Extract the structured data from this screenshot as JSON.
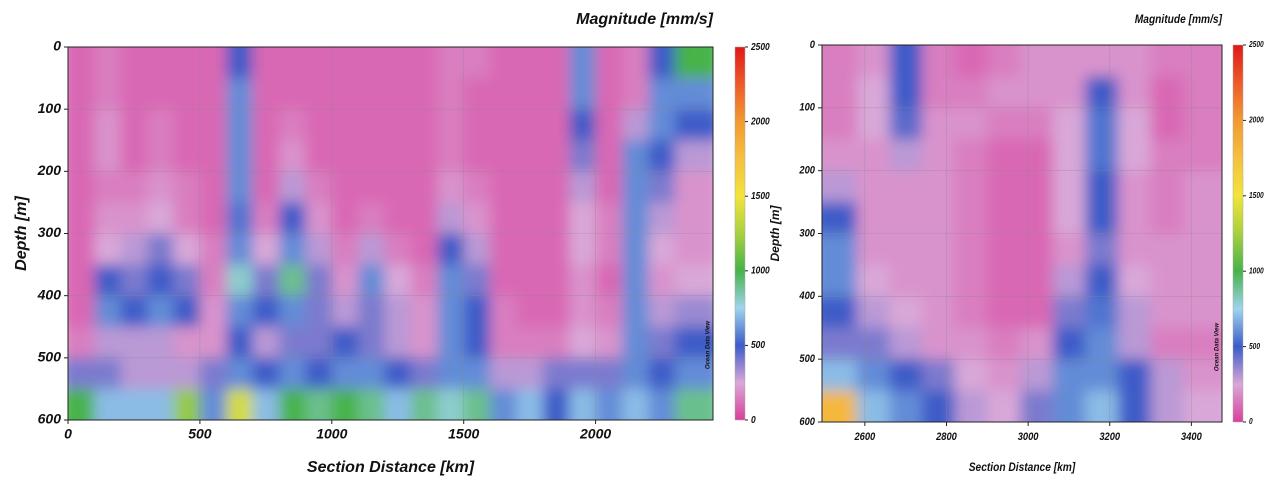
{
  "chart_data": [
    {
      "type": "heatmap",
      "title": "Magnitude [mm/s]",
      "x_label": "Section Distance [km]",
      "y_label": "Depth [m]",
      "watermark": "Ocean Data View",
      "xlim": [
        0,
        2445
      ],
      "xticks": [
        0,
        500,
        1000,
        1500,
        2000
      ],
      "ylim": [
        0,
        600
      ],
      "yticks": [
        0,
        100,
        200,
        300,
        400,
        500,
        600
      ],
      "y_inverted": true,
      "grid": true,
      "clim": [
        0,
        2500
      ],
      "cticks": [
        0,
        500,
        1000,
        1500,
        2000,
        2500
      ],
      "colors": [
        "#d93e9c",
        "#d9a8d8",
        "#3c5cc8",
        "#9fd4ee",
        "#46b34a",
        "#a8d040",
        "#f2e43a",
        "#f5c040",
        "#f29a30",
        "#ee5a2a",
        "#e01818"
      ],
      "x": [
        50,
        150,
        250,
        350,
        450,
        550,
        650,
        750,
        850,
        950,
        1050,
        1150,
        1250,
        1350,
        1450,
        1550,
        1650,
        1750,
        1850,
        1950,
        2050,
        2150,
        2250,
        2350
      ],
      "y": [
        25,
        75,
        125,
        175,
        225,
        275,
        325,
        375,
        425,
        475,
        525,
        575
      ],
      "z": [
        [
          100,
          150,
          100,
          100,
          100,
          100,
          500,
          100,
          100,
          100,
          100,
          100,
          100,
          100,
          150,
          150,
          100,
          100,
          100,
          600,
          100,
          150,
          500,
          1000
        ],
        [
          100,
          150,
          100,
          100,
          100,
          100,
          600,
          100,
          100,
          100,
          100,
          100,
          100,
          100,
          150,
          100,
          100,
          100,
          100,
          600,
          100,
          150,
          600,
          600
        ],
        [
          100,
          200,
          100,
          150,
          100,
          100,
          600,
          100,
          150,
          100,
          100,
          100,
          100,
          100,
          150,
          100,
          100,
          100,
          100,
          500,
          100,
          300,
          600,
          500
        ],
        [
          100,
          200,
          100,
          150,
          100,
          100,
          600,
          100,
          200,
          100,
          100,
          100,
          100,
          100,
          150,
          100,
          100,
          100,
          100,
          400,
          100,
          600,
          500,
          300
        ],
        [
          100,
          150,
          150,
          200,
          150,
          100,
          600,
          100,
          300,
          150,
          100,
          100,
          100,
          100,
          200,
          150,
          100,
          100,
          100,
          300,
          100,
          600,
          400,
          200
        ],
        [
          100,
          200,
          200,
          250,
          150,
          100,
          550,
          150,
          500,
          200,
          100,
          150,
          100,
          100,
          300,
          200,
          100,
          100,
          100,
          250,
          150,
          600,
          300,
          200
        ],
        [
          100,
          250,
          300,
          400,
          250,
          150,
          600,
          250,
          600,
          300,
          150,
          300,
          150,
          100,
          500,
          300,
          100,
          100,
          100,
          250,
          150,
          600,
          250,
          200
        ],
        [
          100,
          500,
          400,
          500,
          400,
          150,
          800,
          400,
          900,
          400,
          200,
          600,
          250,
          150,
          600,
          400,
          100,
          100,
          100,
          200,
          100,
          600,
          200,
          250
        ],
        [
          100,
          600,
          500,
          600,
          500,
          200,
          600,
          500,
          600,
          400,
          300,
          400,
          300,
          200,
          600,
          500,
          150,
          100,
          100,
          200,
          150,
          600,
          300,
          350
        ],
        [
          150,
          300,
          300,
          300,
          200,
          200,
          500,
          300,
          400,
          400,
          500,
          400,
          300,
          200,
          600,
          500,
          150,
          150,
          150,
          250,
          200,
          600,
          400,
          500
        ],
        [
          400,
          400,
          300,
          300,
          300,
          400,
          600,
          500,
          600,
          500,
          600,
          600,
          500,
          400,
          600,
          600,
          300,
          300,
          400,
          400,
          400,
          600,
          500,
          600
        ],
        [
          1000,
          700,
          700,
          700,
          1200,
          600,
          1400,
          700,
          1000,
          900,
          1000,
          900,
          700,
          900,
          800,
          900,
          600,
          700,
          500,
          700,
          600,
          700,
          600,
          900
        ]
      ]
    },
    {
      "type": "heatmap",
      "title": "Magnitude [mm/s]",
      "x_label": "Section Distance [km]",
      "y_label": "Depth [m]",
      "watermark": "Ocean Data View",
      "xlim": [
        2495,
        3475
      ],
      "xticks": [
        2600,
        2800,
        3000,
        3200,
        3400
      ],
      "ylim": [
        0,
        600
      ],
      "yticks": [
        0,
        100,
        200,
        300,
        400,
        500,
        600
      ],
      "y_inverted": true,
      "grid": true,
      "clim": [
        0,
        2500
      ],
      "cticks": [
        0,
        500,
        1000,
        1500,
        2000,
        2500
      ],
      "colors": [
        "#d93e9c",
        "#d9a8d8",
        "#3c5cc8",
        "#9fd4ee",
        "#46b34a",
        "#a8d040",
        "#f2e43a",
        "#f5c040",
        "#f29a30",
        "#ee5a2a",
        "#e01818"
      ],
      "x": [
        2540,
        2620,
        2700,
        2780,
        2860,
        2940,
        3020,
        3100,
        3180,
        3260,
        3340,
        3420
      ],
      "y": [
        25,
        75,
        125,
        175,
        225,
        275,
        325,
        375,
        425,
        475,
        525,
        575
      ],
      "z": [
        [
          150,
          200,
          500,
          150,
          100,
          150,
          200,
          200,
          200,
          200,
          150,
          150
        ],
        [
          150,
          250,
          500,
          150,
          150,
          200,
          200,
          200,
          500,
          200,
          100,
          150
        ],
        [
          150,
          250,
          450,
          200,
          200,
          150,
          150,
          250,
          550,
          250,
          100,
          150
        ],
        [
          200,
          200,
          300,
          200,
          150,
          100,
          100,
          250,
          550,
          250,
          150,
          150
        ],
        [
          300,
          200,
          200,
          200,
          150,
          100,
          100,
          250,
          500,
          200,
          150,
          200
        ],
        [
          500,
          200,
          200,
          200,
          150,
          100,
          100,
          250,
          500,
          200,
          150,
          200
        ],
        [
          600,
          200,
          200,
          200,
          150,
          100,
          100,
          200,
          400,
          200,
          200,
          200
        ],
        [
          600,
          250,
          200,
          200,
          150,
          100,
          100,
          300,
          500,
          250,
          200,
          200
        ],
        [
          500,
          300,
          250,
          200,
          150,
          100,
          100,
          400,
          550,
          300,
          200,
          200
        ],
        [
          400,
          400,
          300,
          200,
          200,
          150,
          200,
          500,
          600,
          300,
          150,
          150
        ],
        [
          700,
          600,
          500,
          400,
          250,
          200,
          300,
          600,
          600,
          500,
          300,
          200
        ],
        [
          1800,
          700,
          600,
          500,
          300,
          250,
          400,
          600,
          700,
          500,
          300,
          250
        ]
      ]
    }
  ]
}
